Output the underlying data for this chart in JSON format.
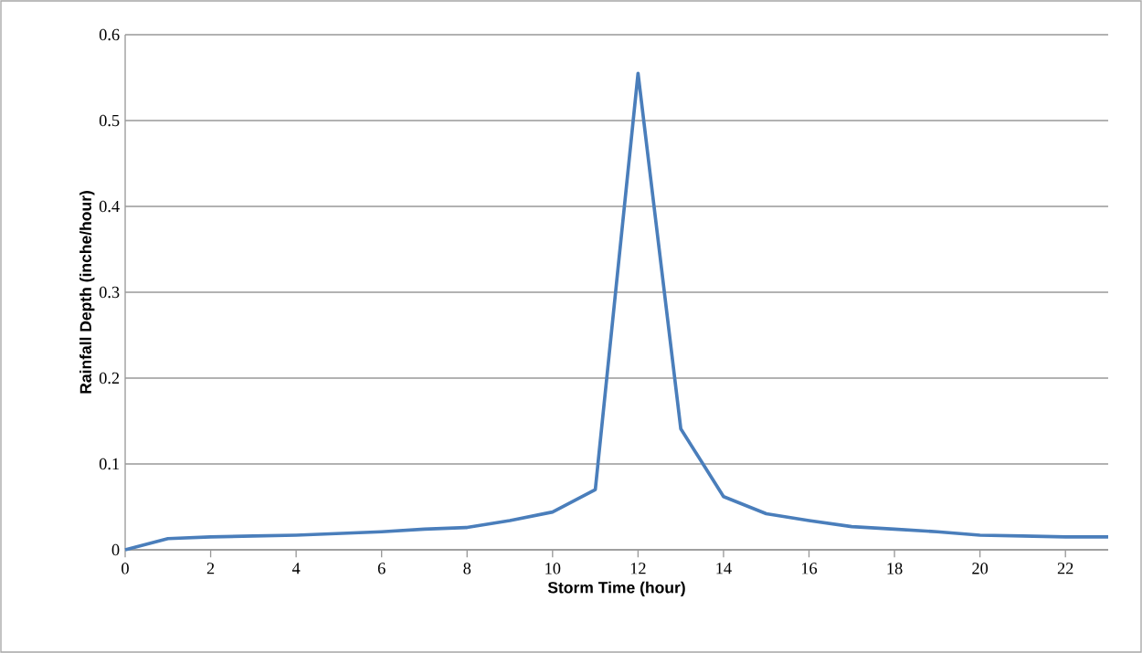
{
  "chart_data": {
    "type": "line",
    "xlabel": "Storm Time (hour)",
    "ylabel": "Rainfall Depth (inche/hour)",
    "x": [
      0,
      1,
      2,
      3,
      4,
      5,
      6,
      7,
      8,
      9,
      10,
      11,
      12,
      13,
      14,
      15,
      16,
      17,
      18,
      19,
      20,
      21,
      22,
      23
    ],
    "series": [
      {
        "color": "#4a7ebb",
        "values": [
          0,
          0.013,
          0.015,
          0.016,
          0.017,
          0.019,
          0.021,
          0.024,
          0.026,
          0.034,
          0.044,
          0.07,
          0.555,
          0.141,
          0.062,
          0.042,
          0.034,
          0.027,
          0.024,
          0.021,
          0.017,
          0.016,
          0.015,
          0.015
        ]
      }
    ],
    "xlim": [
      0,
      23
    ],
    "ylim": [
      0,
      0.6
    ],
    "xticks": [
      0,
      2,
      4,
      6,
      8,
      10,
      12,
      14,
      16,
      18,
      20,
      22
    ],
    "yticks": [
      0,
      0.1,
      0.2,
      0.3,
      0.4,
      0.5,
      0.6
    ],
    "grid": "y",
    "marker": "none",
    "line_style": "solid"
  }
}
